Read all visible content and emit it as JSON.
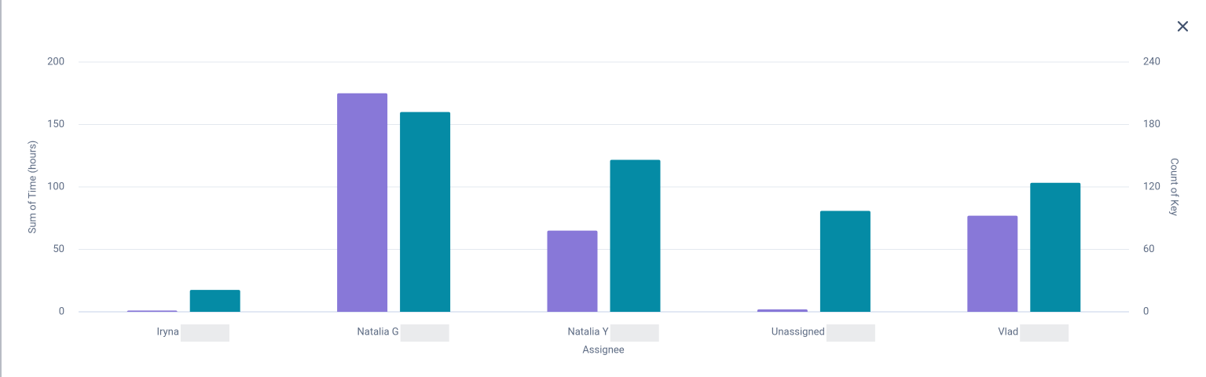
{
  "chart_data": {
    "type": "bar",
    "x_label": "Assignee",
    "y_label": "Sum of Time (hours)",
    "y2_label": "Count of Key",
    "categories": [
      "Iryna",
      "Natalia G",
      "Natalia Y",
      "Unassigned",
      "Vlad"
    ],
    "series": [
      {
        "color": "#8878d8",
        "values": [
          1,
          175,
          65,
          2,
          77
        ]
      },
      {
        "color": "#058ba5",
        "axis": "y2",
        "values": [
          21,
          192,
          146,
          97,
          124
        ]
      }
    ],
    "ylim": [
      0,
      200
    ],
    "yticks": [
      0,
      50,
      100,
      150,
      200
    ],
    "y2lim": [
      0,
      240
    ],
    "y2ticks": [
      0,
      60,
      120,
      180,
      240
    ],
    "grid": true
  }
}
